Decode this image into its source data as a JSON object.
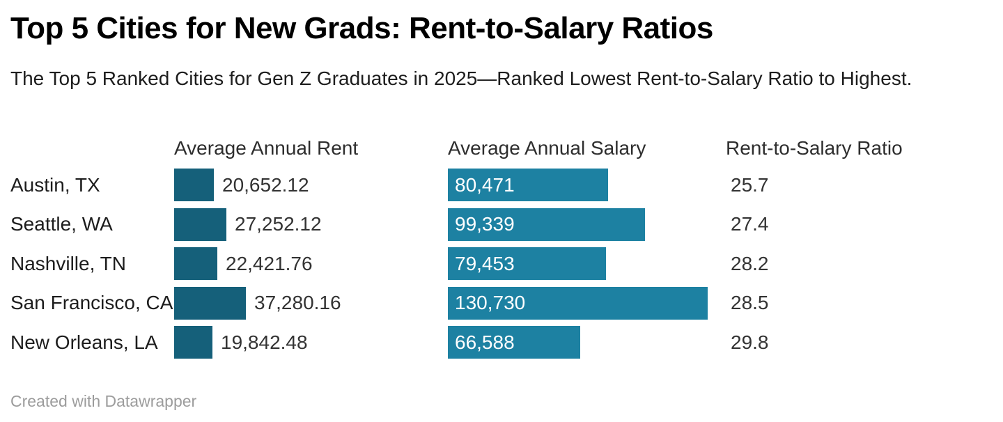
{
  "header": {
    "title": "Top 5 Cities for New Grads: Rent-to-Salary Ratios",
    "subtitle": "The Top 5 Ranked Cities for Gen Z Graduates in 2025—Ranked Lowest Rent-to-Salary Ratio to Highest."
  },
  "table": {
    "headers": {
      "rent": "Average Annual Rent",
      "salary": "Average Annual Salary",
      "ratio": "Rent-to-Salary Ratio"
    }
  },
  "rows": [
    {
      "city": "Austin, TX",
      "rent_label": "20,652.12",
      "rent_value": 20652.12,
      "salary_label": "80,471",
      "salary_value": 80471,
      "ratio": "25.7"
    },
    {
      "city": "Seattle, WA",
      "rent_label": "27,252.12",
      "rent_value": 27252.12,
      "salary_label": "99,339",
      "salary_value": 99339,
      "ratio": "27.4"
    },
    {
      "city": "Nashville, TN",
      "rent_label": "22,421.76",
      "rent_value": 22421.76,
      "salary_label": "79,453",
      "salary_value": 79453,
      "ratio": "28.2"
    },
    {
      "city": "San Francisco, CA",
      "rent_label": "37,280.16",
      "rent_value": 37280.16,
      "salary_label": "130,730",
      "salary_value": 130730,
      "ratio": "28.5"
    },
    {
      "city": "New Orleans, LA",
      "rent_label": "19,842.48",
      "rent_value": 19842.48,
      "salary_label": "66,588",
      "salary_value": 66588,
      "ratio": "29.8"
    }
  ],
  "colors": {
    "rent_bar": "#15607a",
    "salary_bar": "#1d81a2"
  },
  "footer": {
    "credit": "Created with Datawrapper"
  },
  "chart_data": {
    "type": "bar",
    "orientation": "horizontal",
    "title": "Top 5 Cities for New Grads: Rent-to-Salary Ratios",
    "subtitle": "The Top 5 Ranked Cities for Gen Z Graduates in 2025—Ranked Lowest Rent-to-Salary Ratio to Highest.",
    "categories": [
      "Austin, TX",
      "Seattle, WA",
      "Nashville, TN",
      "San Francisco, CA",
      "New Orleans, LA"
    ],
    "series": [
      {
        "name": "Average Annual Rent",
        "values": [
          20652.12,
          27252.12,
          22421.76,
          37280.16,
          19842.48
        ],
        "bar_color": "#15607a",
        "label_position": "outside-right"
      },
      {
        "name": "Average Annual Salary",
        "values": [
          80471,
          99339,
          79453,
          130730,
          66588
        ],
        "bar_color": "#1d81a2",
        "label_position": "inside-left"
      },
      {
        "name": "Rent-to-Salary Ratio",
        "values": [
          25.7,
          27.4,
          28.2,
          28.5,
          29.8
        ],
        "bar_color": null,
        "label_position": "text-only"
      }
    ],
    "bar_scaling": "each column scaled to its own max value",
    "grid": false,
    "legend": "none",
    "credit": "Created with Datawrapper"
  }
}
